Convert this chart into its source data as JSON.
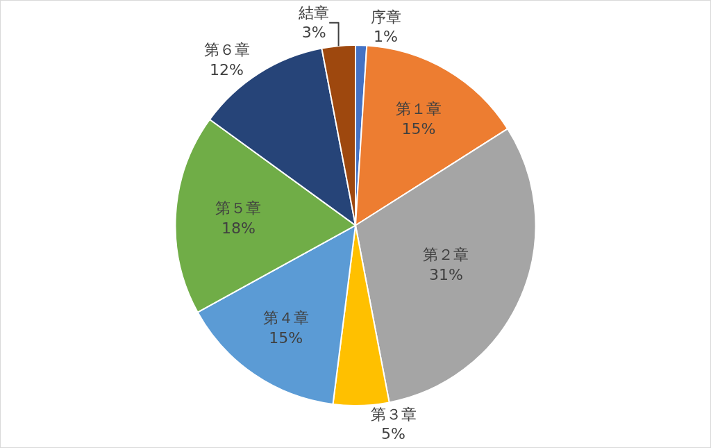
{
  "chart_data": {
    "type": "pie",
    "categories": [
      "序章",
      "第１章",
      "第２章",
      "第３章",
      "第４章",
      "第５章",
      "第６章",
      "結章"
    ],
    "values": [
      1,
      15,
      31,
      5,
      15,
      18,
      12,
      3
    ],
    "value_labels": [
      "1%",
      "15%",
      "31%",
      "5%",
      "15%",
      "18%",
      "12%",
      "3%"
    ],
    "colors": [
      "#4472c4",
      "#ed7d31",
      "#a5a5a5",
      "#ffc000",
      "#5b9bd5",
      "#70ad47",
      "#264478",
      "#9e480e"
    ],
    "legend": false
  }
}
